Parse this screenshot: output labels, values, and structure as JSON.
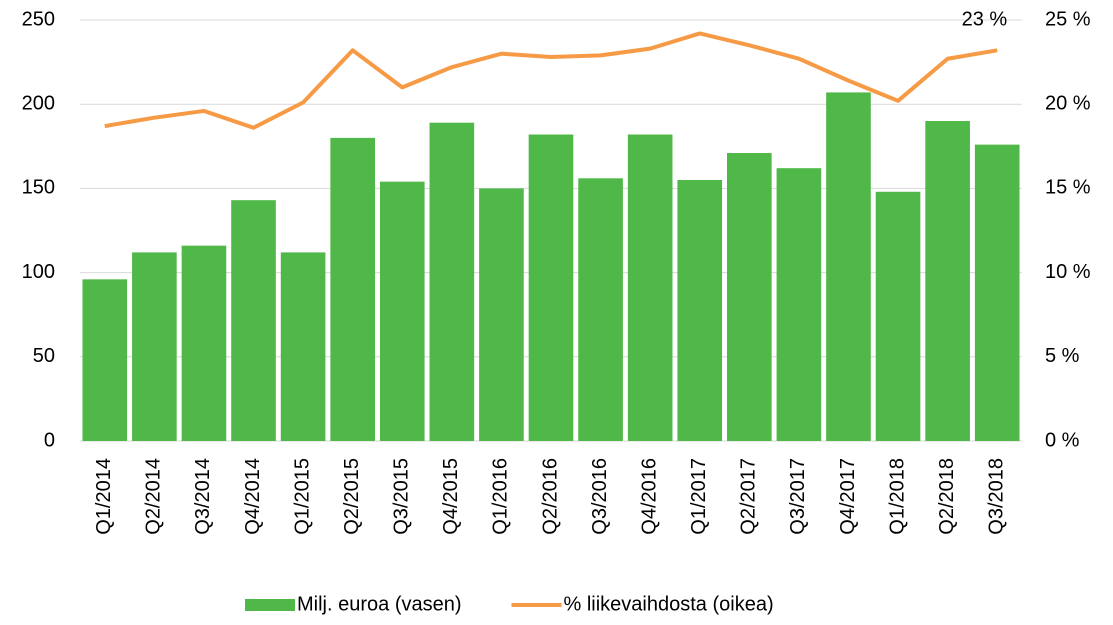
{
  "chart_data": {
    "type": "bar-line",
    "categories": [
      "Q1/2014",
      "Q2/2014",
      "Q3/2014",
      "Q4/2014",
      "Q1/2015",
      "Q2/2015",
      "Q3/2015",
      "Q4/2015",
      "Q1/2016",
      "Q2/2016",
      "Q3/2016",
      "Q4/2016",
      "Q1/2017",
      "Q2/2017",
      "Q3/2017",
      "Q4/2017",
      "Q1/2018",
      "Q2/2018",
      "Q3/2018"
    ],
    "series": [
      {
        "name": "Milj. euroa (vasen)",
        "type": "bar",
        "color": "#50b848",
        "values": [
          96,
          112,
          116,
          143,
          112,
          180,
          154,
          189,
          150,
          182,
          156,
          182,
          155,
          171,
          162,
          207,
          148,
          190,
          176
        ]
      },
      {
        "name": "% liikevaihdosta (oikea)",
        "type": "line",
        "axis": "y2",
        "color": "#f79a45",
        "values": [
          18.7,
          19.2,
          19.6,
          18.6,
          20.1,
          23.2,
          21.0,
          22.2,
          23.0,
          22.8,
          22.9,
          23.3,
          24.2,
          23.5,
          22.7,
          21.4,
          20.2,
          22.7,
          23.2
        ]
      }
    ],
    "annotation": "23 %",
    "ylim": [
      0,
      250
    ],
    "yticks": [
      0,
      50,
      100,
      150,
      200,
      250
    ],
    "y2lim": [
      0,
      25
    ],
    "y2ticks": [
      {
        "value": 0,
        "label": "0 %"
      },
      {
        "value": 5,
        "label": "5 %"
      },
      {
        "value": 10,
        "label": "10 %"
      },
      {
        "value": 15,
        "label": "15 %"
      },
      {
        "value": 20,
        "label": "20 %"
      },
      {
        "value": 25,
        "label": "25 %"
      }
    ],
    "grid": true,
    "legend": "bottom"
  }
}
